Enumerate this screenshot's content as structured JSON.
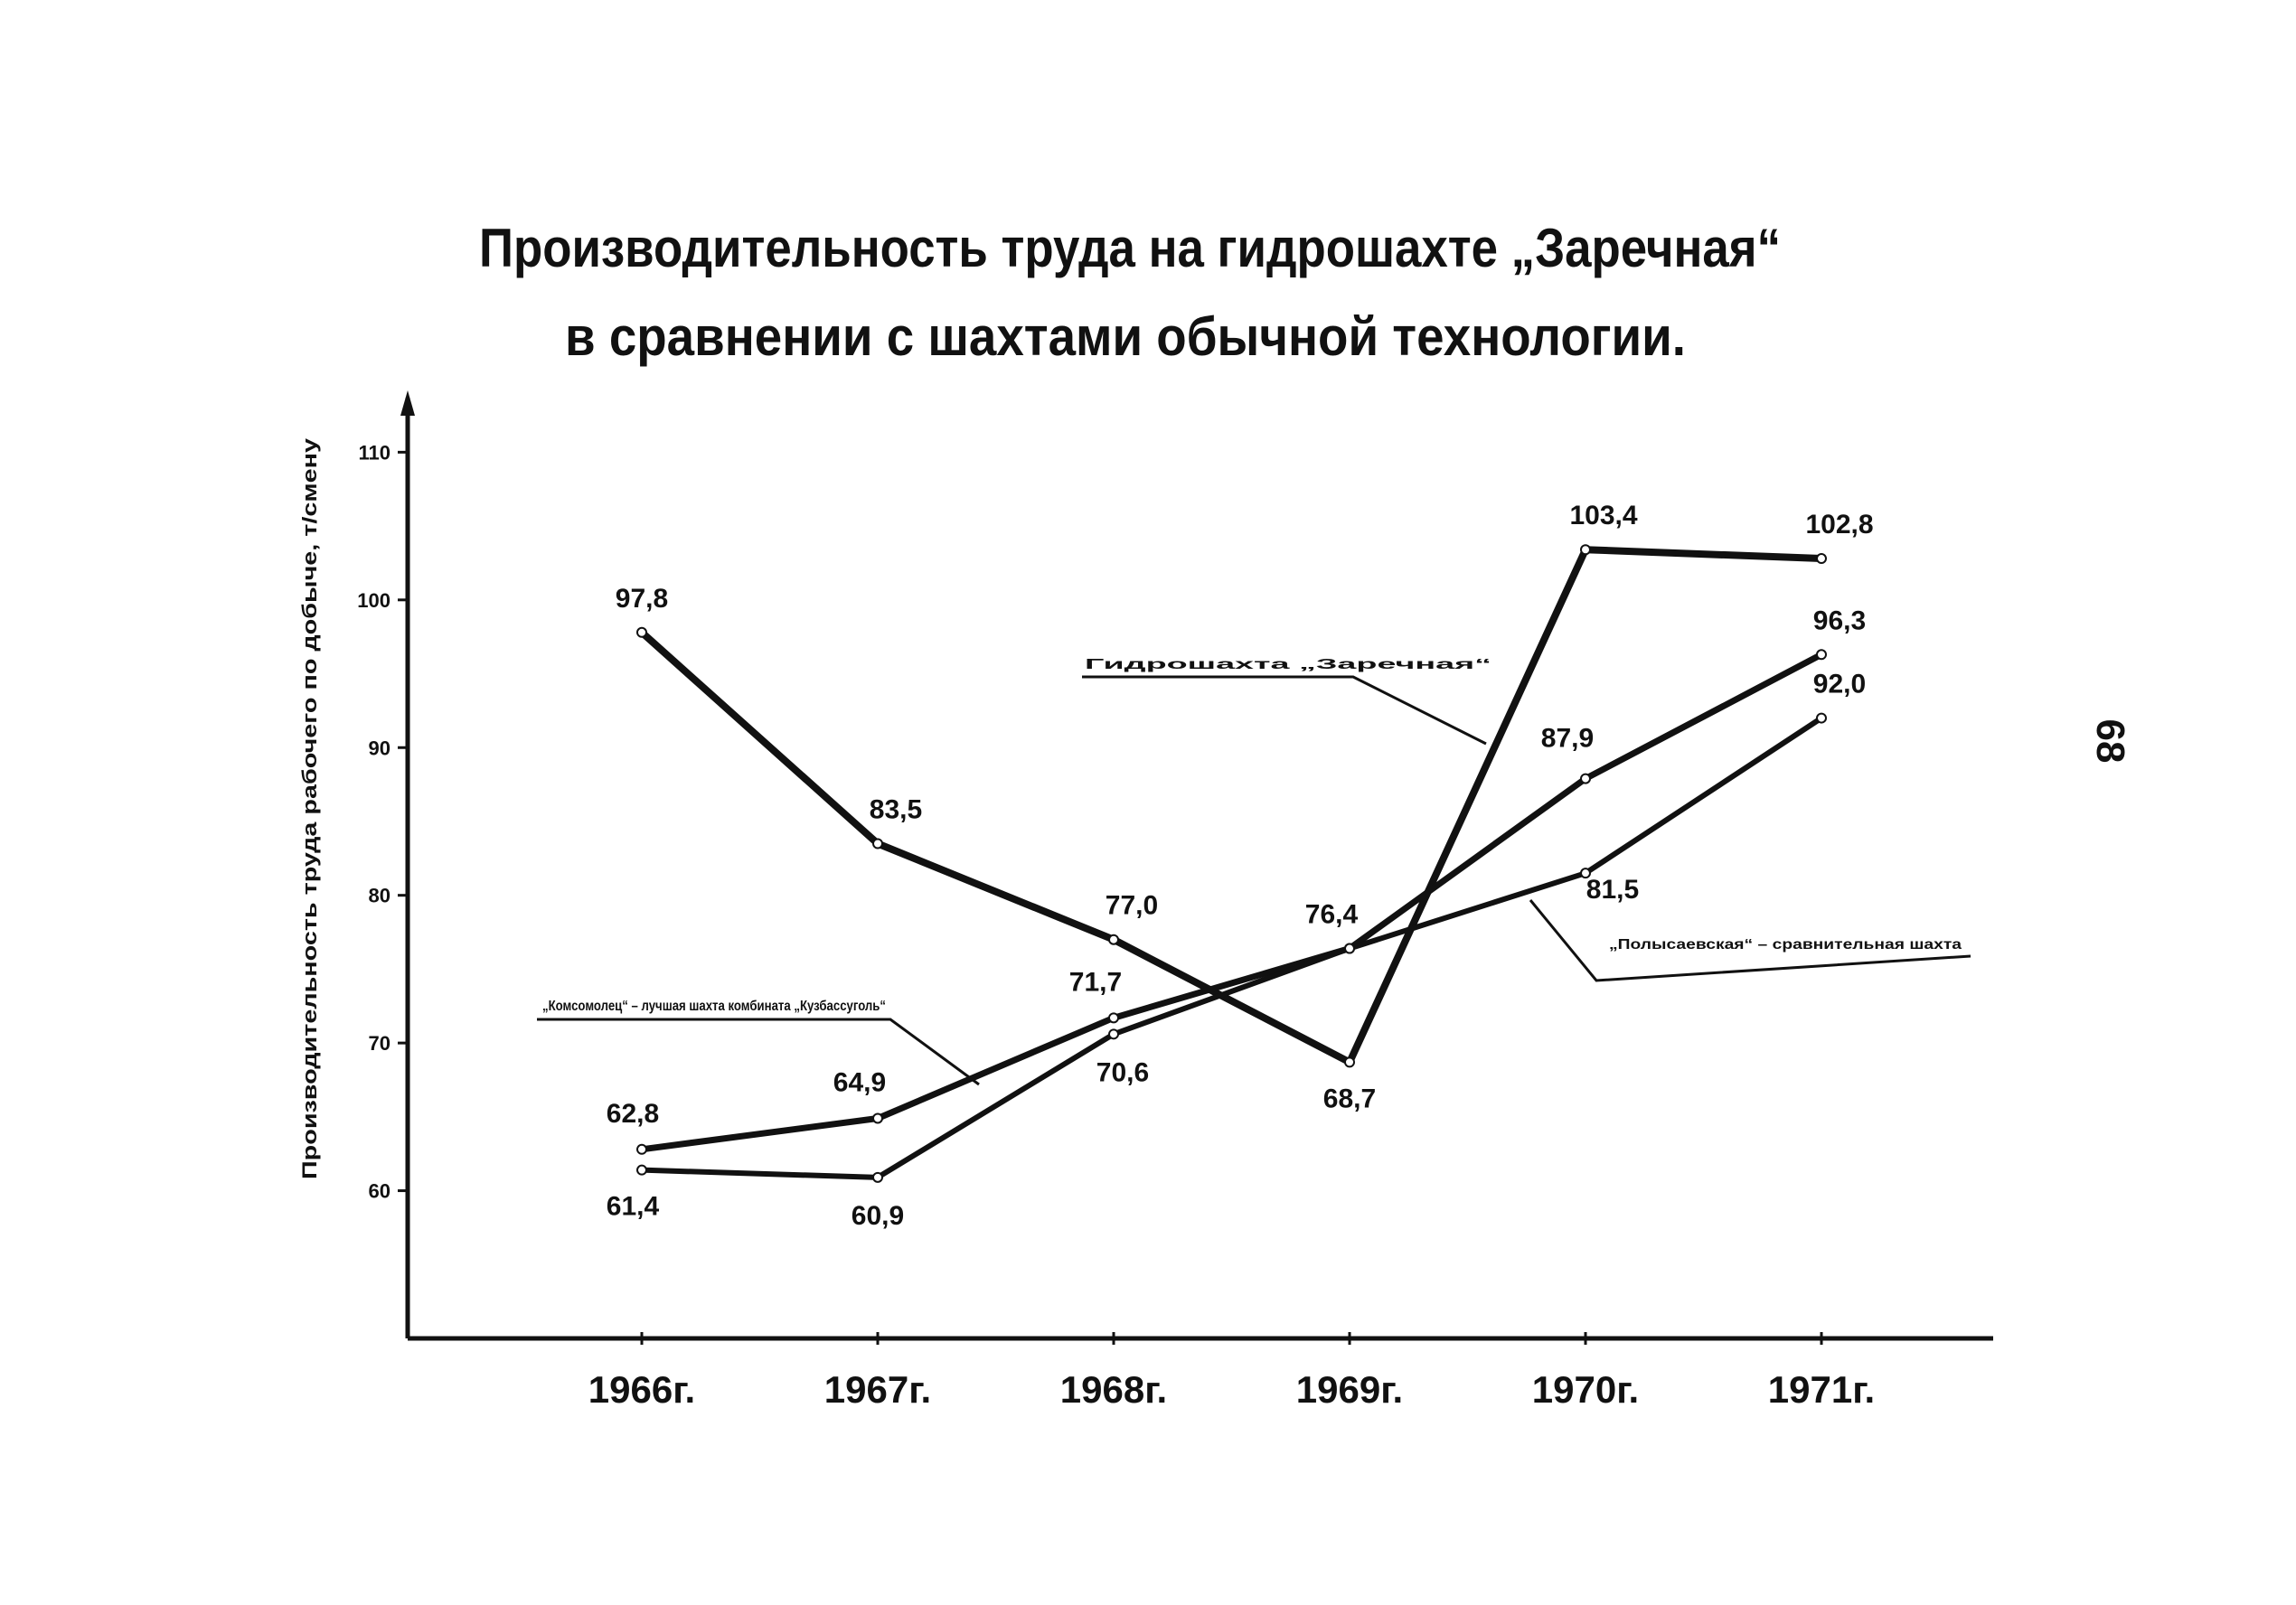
{
  "chart_data": {
    "type": "line",
    "title": "Производительность труда на гидрошахте „Заречная“",
    "subtitle": "в сравнении с шахтами обычной технологии.",
    "y_label": "Производительность труда рабочего по добыче, т/смену",
    "page_number": "68",
    "categories": [
      "1966г.",
      "1967г.",
      "1968г.",
      "1969г.",
      "1970г.",
      "1971г."
    ],
    "ylim": [
      50,
      114
    ],
    "yticks": [
      60,
      70,
      80,
      90,
      100,
      110
    ],
    "series": [
      {
        "name": "Гидрошахта „Заречная“",
        "color": "#111111",
        "values": [
          97.8,
          83.5,
          77.0,
          68.7,
          103.4,
          102.8
        ],
        "value_labels": [
          "97,8",
          "83,5",
          "77,0",
          "68,7",
          "103,4",
          "102,8"
        ]
      },
      {
        "name": "„Комсомолец“ – лучшая шахта комбината „Кузбассуголь“",
        "color": "#111111",
        "values": [
          62.8,
          64.9,
          71.7,
          76.4,
          87.9,
          96.3
        ],
        "value_labels": [
          "62,8",
          "64,9",
          "71,7",
          "76,4",
          "87,9",
          "96,3"
        ]
      },
      {
        "name": "„Полысаевская“ – сравнительная шахта",
        "color": "#111111",
        "values": [
          61.4,
          60.9,
          70.6,
          76.4,
          81.5,
          92.0
        ],
        "value_labels": [
          "61,4",
          "60,9",
          "70,6",
          null,
          "81,5",
          "92,0"
        ]
      }
    ]
  }
}
